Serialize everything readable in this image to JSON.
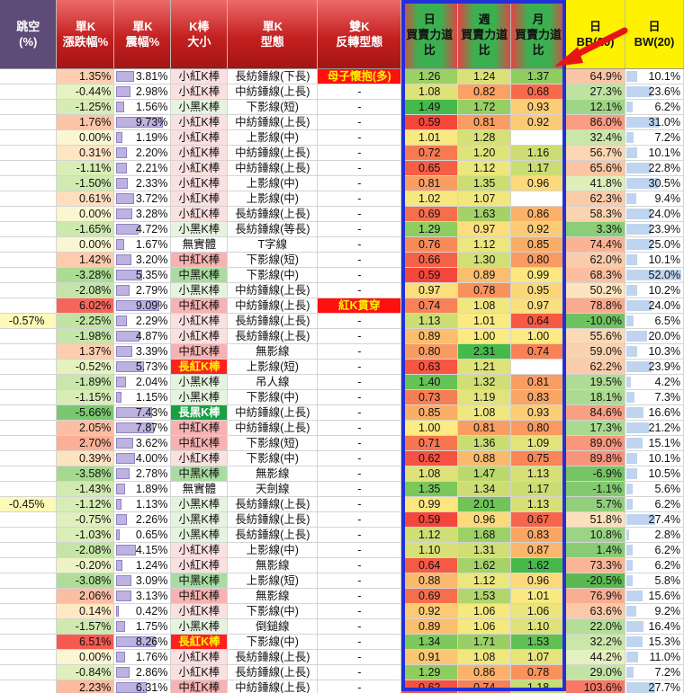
{
  "headers": [
    "跳空\n(%)",
    "單K\n漲跌幅%",
    "單K\n震幅%",
    "K棒\n大小",
    "單K\n型態",
    "雙K\n反轉型態",
    "日\n買賣力道\n比",
    "週\n買賣力道\n比",
    "月\n買賣力道\n比",
    "日\nBB(20)",
    "日\nBW(20)"
  ],
  "rows": [
    [
      "",
      "1.35%",
      "3.81%",
      "小紅K棒",
      "長紡錘線(下長)",
      "母子懷抱(多)",
      "1.26",
      "1.24",
      "1.37",
      "64.9%",
      "10.1%"
    ],
    [
      "",
      "-0.44%",
      "2.98%",
      "小紅K棒",
      "中紡錘線(上長)",
      "-",
      "1.08",
      "0.82",
      "0.68",
      "27.3%",
      "23.6%"
    ],
    [
      "",
      "-1.25%",
      "1.56%",
      "小黑K棒",
      "下影線(短)",
      "-",
      "1.49",
      "1.72",
      "0.93",
      "12.1%",
      "6.2%"
    ],
    [
      "",
      "1.76%",
      "9.73%",
      "小紅K棒",
      "中紡錘線(上長)",
      "-",
      "0.59",
      "0.81",
      "0.92",
      "86.0%",
      "31.0%"
    ],
    [
      "",
      "0.00%",
      "1.19%",
      "小紅K棒",
      "上影線(中)",
      "-",
      "1.01",
      "1.28",
      "",
      "32.4%",
      "7.2%"
    ],
    [
      "",
      "0.31%",
      "2.20%",
      "小紅K棒",
      "中紡錘線(上長)",
      "-",
      "0.72",
      "1.20",
      "1.16",
      "56.7%",
      "10.1%"
    ],
    [
      "",
      "-1.11%",
      "2.21%",
      "小紅K棒",
      "中紡錘線(上長)",
      "-",
      "0.65",
      "1.12",
      "1.17",
      "65.6%",
      "22.8%"
    ],
    [
      "",
      "-1.50%",
      "2.33%",
      "小紅K棒",
      "上影線(中)",
      "-",
      "0.81",
      "1.35",
      "0.96",
      "41.8%",
      "30.5%"
    ],
    [
      "",
      "0.61%",
      "3.72%",
      "小紅K棒",
      "上影線(中)",
      "-",
      "1.02",
      "1.07",
      "",
      "62.3%",
      "9.4%"
    ],
    [
      "",
      "0.00%",
      "3.28%",
      "小紅K棒",
      "長紡錘線(上長)",
      "-",
      "0.69",
      "1.63",
      "0.86",
      "58.3%",
      "24.0%"
    ],
    [
      "",
      "-1.65%",
      "4.72%",
      "小黑K棒",
      "長紡錘線(等長)",
      "-",
      "1.29",
      "0.97",
      "0.92",
      "3.3%",
      "23.9%"
    ],
    [
      "",
      "0.00%",
      "1.67%",
      "無實體",
      "T字線",
      "-",
      "0.76",
      "1.12",
      "0.85",
      "74.4%",
      "25.0%"
    ],
    [
      "",
      "1.42%",
      "3.20%",
      "中紅K棒",
      "下影線(短)",
      "-",
      "0.66",
      "1.30",
      "0.80",
      "62.0%",
      "10.1%"
    ],
    [
      "",
      "-3.28%",
      "5.35%",
      "中黑K棒",
      "下影線(中)",
      "-",
      "0.59",
      "0.89",
      "0.99",
      "68.3%",
      "52.0%"
    ],
    [
      "",
      "-2.08%",
      "2.79%",
      "小黑K棒",
      "中紡錘線(上長)",
      "-",
      "0.97",
      "0.78",
      "0.95",
      "50.2%",
      "10.2%"
    ],
    [
      "",
      "6.02%",
      "9.09%",
      "中紅K棒",
      "中紡錘線(上長)",
      "紅K貫穿",
      "0.74",
      "1.08",
      "0.97",
      "78.8%",
      "24.0%"
    ],
    [
      "-0.57%",
      "-2.25%",
      "2.29%",
      "小紅K棒",
      "長紡錘線(上長)",
      "-",
      "1.13",
      "1.01",
      "0.64",
      "-10.0%",
      "6.5%"
    ],
    [
      "",
      "-1.98%",
      "4.87%",
      "小紅K棒",
      "長紡錘線(上長)",
      "-",
      "0.89",
      "1.00",
      "1.00",
      "55.6%",
      "20.0%"
    ],
    [
      "",
      "1.37%",
      "3.39%",
      "中紅K棒",
      "無影線",
      "-",
      "0.80",
      "2.31",
      "0.74",
      "59.0%",
      "10.3%"
    ],
    [
      "",
      "-0.52%",
      "5.73%",
      "長紅K棒",
      "上影線(短)",
      "-",
      "0.63",
      "1.21",
      "",
      "62.2%",
      "23.9%"
    ],
    [
      "",
      "-1.89%",
      "2.04%",
      "小黑K棒",
      "吊人線",
      "-",
      "1.40",
      "1.32",
      "0.81",
      "19.5%",
      "4.2%"
    ],
    [
      "",
      "-1.15%",
      "1.15%",
      "小黑K棒",
      "下影線(中)",
      "-",
      "0.73",
      "1.19",
      "0.83",
      "18.1%",
      "7.3%"
    ],
    [
      "",
      "-5.66%",
      "7.43%",
      "長黑K棒",
      "中紡錘線(上長)",
      "-",
      "0.85",
      "1.08",
      "0.93",
      "84.6%",
      "16.6%"
    ],
    [
      "",
      "2.05%",
      "7.87%",
      "中紅K棒",
      "中紡錘線(上長)",
      "-",
      "1.00",
      "0.81",
      "0.80",
      "17.3%",
      "21.2%"
    ],
    [
      "",
      "2.70%",
      "3.62%",
      "中紅K棒",
      "下影線(短)",
      "-",
      "0.71",
      "1.36",
      "1.09",
      "89.0%",
      "15.1%"
    ],
    [
      "",
      "0.39%",
      "4.00%",
      "小紅K棒",
      "下影線(中)",
      "-",
      "0.62",
      "0.88",
      "0.75",
      "89.8%",
      "10.1%"
    ],
    [
      "",
      "-3.58%",
      "2.78%",
      "中黑K棒",
      "無影線",
      "-",
      "1.08",
      "1.47",
      "1.13",
      "-6.9%",
      "10.5%"
    ],
    [
      "",
      "-1.43%",
      "1.89%",
      "無實體",
      "天劍線",
      "-",
      "1.35",
      "1.34",
      "1.17",
      "-1.1%",
      "5.6%"
    ],
    [
      "-0.45%",
      "-1.12%",
      "1.13%",
      "小黑K棒",
      "長紡錘線(上長)",
      "-",
      "0.99",
      "2.01",
      "1.13",
      "5.7%",
      "6.2%"
    ],
    [
      "",
      "-0.75%",
      "2.26%",
      "小黑K棒",
      "長紡錘線(上長)",
      "-",
      "0.59",
      "0.96",
      "0.67",
      "51.8%",
      "27.4%"
    ],
    [
      "",
      "-1.03%",
      "0.65%",
      "小黑K棒",
      "長紡錘線(上長)",
      "-",
      "1.12",
      "1.68",
      "0.83",
      "10.8%",
      "2.8%"
    ],
    [
      "",
      "-2.08%",
      "4.15%",
      "小紅K棒",
      "上影線(中)",
      "-",
      "1.10",
      "1.31",
      "0.87",
      "1.4%",
      "6.2%"
    ],
    [
      "",
      "-0.20%",
      "1.24%",
      "小紅K棒",
      "無影線",
      "-",
      "0.64",
      "1.62",
      "1.62",
      "73.3%",
      "6.2%"
    ],
    [
      "",
      "-3.08%",
      "3.09%",
      "中黑K棒",
      "上影線(短)",
      "-",
      "0.88",
      "1.12",
      "0.96",
      "-20.5%",
      "5.8%"
    ],
    [
      "",
      "2.06%",
      "3.13%",
      "中紅K棒",
      "無影線",
      "-",
      "0.69",
      "1.53",
      "1.01",
      "76.9%",
      "15.6%"
    ],
    [
      "",
      "0.14%",
      "0.42%",
      "小紅K棒",
      "下影線(中)",
      "-",
      "0.92",
      "1.06",
      "1.06",
      "63.6%",
      "9.2%"
    ],
    [
      "",
      "-1.57%",
      "1.75%",
      "小黑K棒",
      "倒鎚線",
      "-",
      "0.89",
      "1.06",
      "1.10",
      "22.0%",
      "16.4%"
    ],
    [
      "",
      "6.51%",
      "8.26%",
      "長紅K棒",
      "下影線(中)",
      "-",
      "1.34",
      "1.71",
      "1.53",
      "32.2%",
      "15.3%"
    ],
    [
      "",
      "0.00%",
      "1.76%",
      "小紅K棒",
      "長紡錘線(上長)",
      "-",
      "0.91",
      "1.08",
      "1.07",
      "44.2%",
      "11.0%"
    ],
    [
      "",
      "-0.84%",
      "2.86%",
      "小紅K棒",
      "長紡錘線(上長)",
      "-",
      "1.29",
      "0.86",
      "0.78",
      "29.0%",
      "7.2%"
    ],
    [
      "",
      "2.23%",
      "6.31%",
      "中紅K棒",
      "中紡錘線(上長)",
      "-",
      "0.62",
      "0.74",
      "1.18",
      "103.6%",
      "27.7%"
    ]
  ],
  "colors": {
    "purple_header": "#5e4b78",
    "red_header": "#c42020",
    "yellow_header": "#fff200",
    "blue_frame": "#2330d8",
    "special_bg": "#ff1010",
    "special_fg": "#fff200",
    "arrow": "#e81515"
  },
  "annotations": {
    "frame": "blue rectangle around daily/weekly/monthly buy-sell power ratio columns",
    "arrow_icon": "red-arrow-icon"
  }
}
